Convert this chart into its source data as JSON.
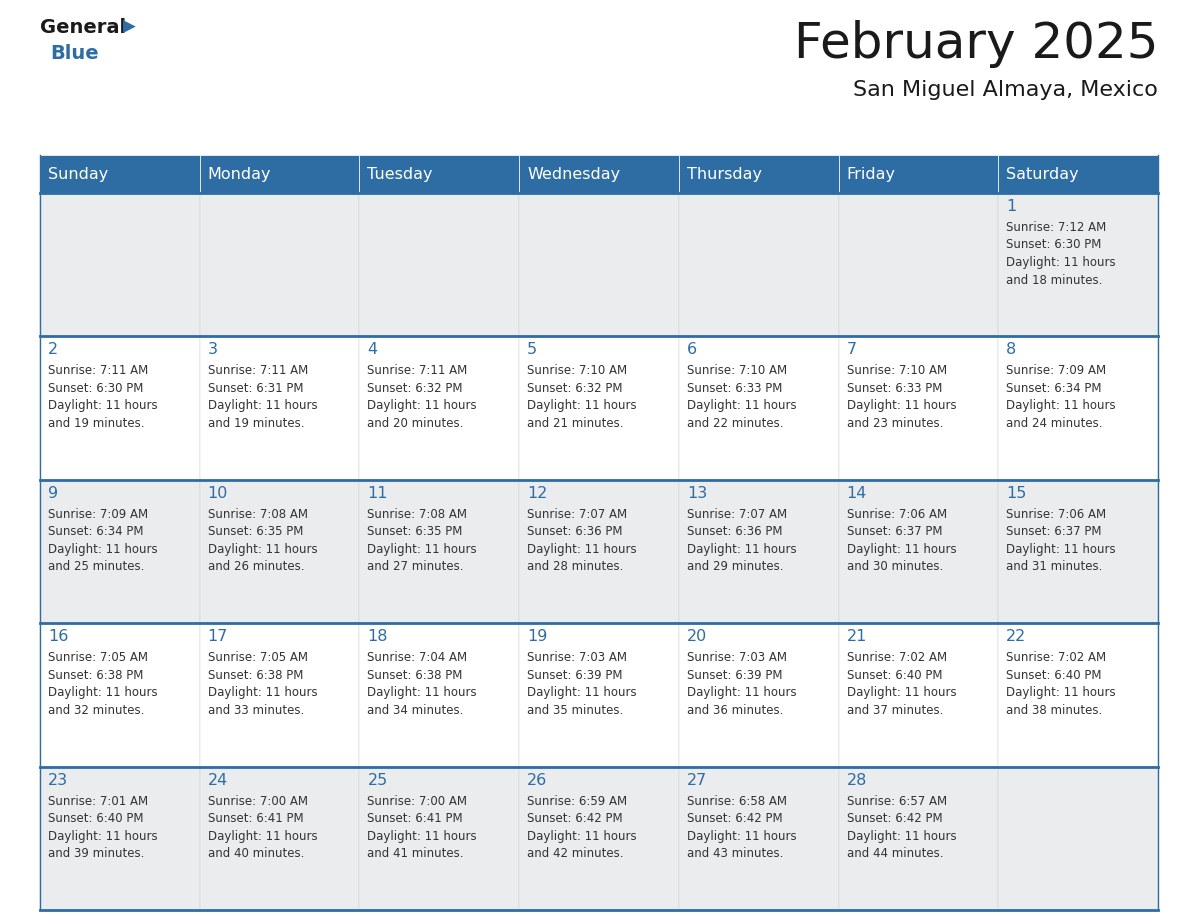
{
  "title": "February 2025",
  "subtitle": "San Miguel Almaya, Mexico",
  "days_of_week": [
    "Sunday",
    "Monday",
    "Tuesday",
    "Wednesday",
    "Thursday",
    "Friday",
    "Saturday"
  ],
  "header_bg": "#2E6DA4",
  "header_text": "#FFFFFF",
  "cell_bg_light": "#EAECEE",
  "cell_bg_white": "#FFFFFF",
  "row_separator_color": "#2E6DA4",
  "day_text_color": "#2E6DA4",
  "info_text_color": "#333333",
  "title_color": "#1a1a1a",
  "logo_black": "#1a1a1a",
  "logo_blue": "#2E6DA4",
  "weeks": [
    [
      {
        "day": null,
        "info": ""
      },
      {
        "day": null,
        "info": ""
      },
      {
        "day": null,
        "info": ""
      },
      {
        "day": null,
        "info": ""
      },
      {
        "day": null,
        "info": ""
      },
      {
        "day": null,
        "info": ""
      },
      {
        "day": 1,
        "info": "Sunrise: 7:12 AM\nSunset: 6:30 PM\nDaylight: 11 hours\nand 18 minutes."
      }
    ],
    [
      {
        "day": 2,
        "info": "Sunrise: 7:11 AM\nSunset: 6:30 PM\nDaylight: 11 hours\nand 19 minutes."
      },
      {
        "day": 3,
        "info": "Sunrise: 7:11 AM\nSunset: 6:31 PM\nDaylight: 11 hours\nand 19 minutes."
      },
      {
        "day": 4,
        "info": "Sunrise: 7:11 AM\nSunset: 6:32 PM\nDaylight: 11 hours\nand 20 minutes."
      },
      {
        "day": 5,
        "info": "Sunrise: 7:10 AM\nSunset: 6:32 PM\nDaylight: 11 hours\nand 21 minutes."
      },
      {
        "day": 6,
        "info": "Sunrise: 7:10 AM\nSunset: 6:33 PM\nDaylight: 11 hours\nand 22 minutes."
      },
      {
        "day": 7,
        "info": "Sunrise: 7:10 AM\nSunset: 6:33 PM\nDaylight: 11 hours\nand 23 minutes."
      },
      {
        "day": 8,
        "info": "Sunrise: 7:09 AM\nSunset: 6:34 PM\nDaylight: 11 hours\nand 24 minutes."
      }
    ],
    [
      {
        "day": 9,
        "info": "Sunrise: 7:09 AM\nSunset: 6:34 PM\nDaylight: 11 hours\nand 25 minutes."
      },
      {
        "day": 10,
        "info": "Sunrise: 7:08 AM\nSunset: 6:35 PM\nDaylight: 11 hours\nand 26 minutes."
      },
      {
        "day": 11,
        "info": "Sunrise: 7:08 AM\nSunset: 6:35 PM\nDaylight: 11 hours\nand 27 minutes."
      },
      {
        "day": 12,
        "info": "Sunrise: 7:07 AM\nSunset: 6:36 PM\nDaylight: 11 hours\nand 28 minutes."
      },
      {
        "day": 13,
        "info": "Sunrise: 7:07 AM\nSunset: 6:36 PM\nDaylight: 11 hours\nand 29 minutes."
      },
      {
        "day": 14,
        "info": "Sunrise: 7:06 AM\nSunset: 6:37 PM\nDaylight: 11 hours\nand 30 minutes."
      },
      {
        "day": 15,
        "info": "Sunrise: 7:06 AM\nSunset: 6:37 PM\nDaylight: 11 hours\nand 31 minutes."
      }
    ],
    [
      {
        "day": 16,
        "info": "Sunrise: 7:05 AM\nSunset: 6:38 PM\nDaylight: 11 hours\nand 32 minutes."
      },
      {
        "day": 17,
        "info": "Sunrise: 7:05 AM\nSunset: 6:38 PM\nDaylight: 11 hours\nand 33 minutes."
      },
      {
        "day": 18,
        "info": "Sunrise: 7:04 AM\nSunset: 6:38 PM\nDaylight: 11 hours\nand 34 minutes."
      },
      {
        "day": 19,
        "info": "Sunrise: 7:03 AM\nSunset: 6:39 PM\nDaylight: 11 hours\nand 35 minutes."
      },
      {
        "day": 20,
        "info": "Sunrise: 7:03 AM\nSunset: 6:39 PM\nDaylight: 11 hours\nand 36 minutes."
      },
      {
        "day": 21,
        "info": "Sunrise: 7:02 AM\nSunset: 6:40 PM\nDaylight: 11 hours\nand 37 minutes."
      },
      {
        "day": 22,
        "info": "Sunrise: 7:02 AM\nSunset: 6:40 PM\nDaylight: 11 hours\nand 38 minutes."
      }
    ],
    [
      {
        "day": 23,
        "info": "Sunrise: 7:01 AM\nSunset: 6:40 PM\nDaylight: 11 hours\nand 39 minutes."
      },
      {
        "day": 24,
        "info": "Sunrise: 7:00 AM\nSunset: 6:41 PM\nDaylight: 11 hours\nand 40 minutes."
      },
      {
        "day": 25,
        "info": "Sunrise: 7:00 AM\nSunset: 6:41 PM\nDaylight: 11 hours\nand 41 minutes."
      },
      {
        "day": 26,
        "info": "Sunrise: 6:59 AM\nSunset: 6:42 PM\nDaylight: 11 hours\nand 42 minutes."
      },
      {
        "day": 27,
        "info": "Sunrise: 6:58 AM\nSunset: 6:42 PM\nDaylight: 11 hours\nand 43 minutes."
      },
      {
        "day": 28,
        "info": "Sunrise: 6:57 AM\nSunset: 6:42 PM\nDaylight: 11 hours\nand 44 minutes."
      },
      {
        "day": null,
        "info": ""
      }
    ]
  ]
}
